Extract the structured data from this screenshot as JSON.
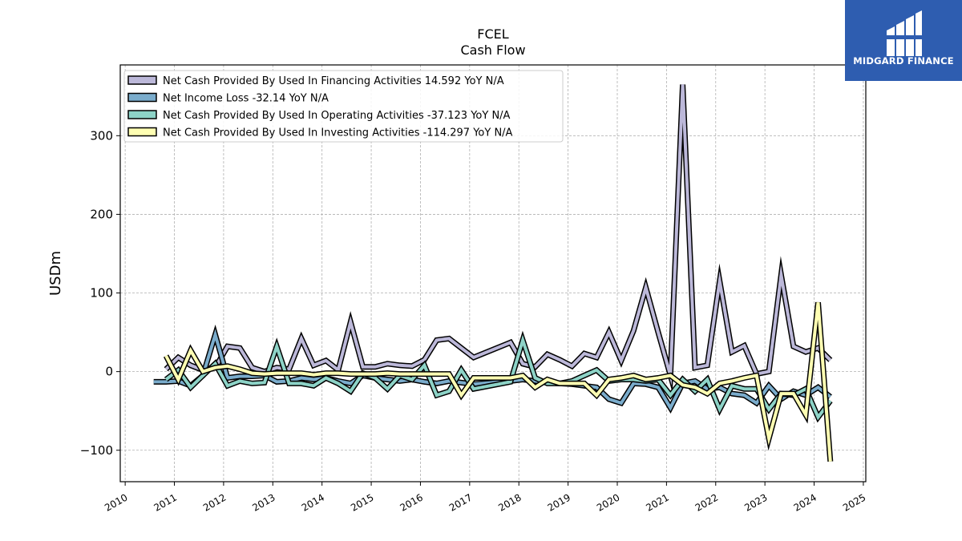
{
  "brand": {
    "name": "MIDGARD FINANCE",
    "bg_color": "#2e5db0"
  },
  "chart_data": {
    "type": "line",
    "title": "FCEL",
    "subtitle": "Cash Flow",
    "ylabel": "USDm",
    "xlabel": "",
    "ylim": [
      -140,
      390
    ],
    "xlim": [
      2009.9,
      2025.05
    ],
    "yticks": [
      -100,
      0,
      100,
      200,
      300
    ],
    "ytick_labels": [
      "−100",
      "0",
      "100",
      "200",
      "300"
    ],
    "xticks": [
      2010,
      2011,
      2012,
      2013,
      2014,
      2015,
      2016,
      2017,
      2018,
      2019,
      2020,
      2021,
      2022,
      2023,
      2024,
      2025
    ],
    "xtick_labels": [
      "2010",
      "2011",
      "2012",
      "2013",
      "2014",
      "2015",
      "2016",
      "2017",
      "2018",
      "2019",
      "2020",
      "2021",
      "2022",
      "2023",
      "2024",
      "2025"
    ],
    "grid": true,
    "legend_position": "top-left",
    "series": [
      {
        "name": "Net Cash Provided By Used In Financing Activities",
        "legend": "Net Cash Provided By Used In Financing Activities  14.592 YoY N/A",
        "color": "#bcb8d9",
        "x": [
          2010.83,
          2011.08,
          2011.33,
          2011.58,
          2011.83,
          2012.08,
          2012.33,
          2012.58,
          2012.83,
          2013.08,
          2013.33,
          2013.58,
          2013.83,
          2014.08,
          2014.33,
          2014.58,
          2014.83,
          2015.08,
          2015.33,
          2015.58,
          2015.83,
          2016.08,
          2016.33,
          2016.58,
          2016.83,
          2017.08,
          2017.83,
          2018.08,
          2018.33,
          2018.58,
          2018.83,
          2019.08,
          2019.33,
          2019.58,
          2019.83,
          2020.08,
          2020.33,
          2020.58,
          2020.83,
          2021.08,
          2021.33,
          2021.58,
          2021.83,
          2022.08,
          2022.33,
          2022.58,
          2022.83,
          2023.08,
          2023.33,
          2023.58,
          2023.83,
          2024.08,
          2024.33
        ],
        "y": [
          3,
          18,
          8,
          2,
          5,
          32,
          30,
          5,
          0,
          5,
          3,
          42,
          8,
          14,
          2,
          63,
          6,
          6,
          10,
          8,
          7,
          15,
          40,
          42,
          30,
          18,
          37,
          10,
          6,
          22,
          15,
          7,
          23,
          18,
          50,
          14,
          52,
          107,
          50,
          -5,
          365,
          5,
          8,
          115,
          25,
          33,
          -3,
          0,
          123,
          32,
          25,
          30,
          14.6
        ]
      },
      {
        "name": "Net Income Loss",
        "legend": "Net Income Loss  -32.14 YoY N/A",
        "color": "#7aaccc",
        "x": [
          2010.58,
          2010.83,
          2011.08,
          2011.33,
          2011.58,
          2011.83,
          2012.08,
          2012.33,
          2012.58,
          2012.83,
          2013.08,
          2013.33,
          2013.58,
          2013.83,
          2014.08,
          2014.33,
          2014.58,
          2014.83,
          2015.08,
          2015.33,
          2015.58,
          2015.83,
          2016.08,
          2016.33,
          2016.58,
          2016.83,
          2017.08,
          2017.83,
          2018.08,
          2018.33,
          2018.58,
          2018.83,
          2019.08,
          2019.33,
          2019.58,
          2019.83,
          2020.08,
          2020.33,
          2020.58,
          2020.83,
          2021.08,
          2021.33,
          2021.58,
          2021.83,
          2022.08,
          2022.33,
          2022.58,
          2022.83,
          2023.08,
          2023.33,
          2023.58,
          2023.83,
          2024.08,
          2024.33
        ],
        "y": [
          -13,
          -13,
          -12,
          -18,
          -5,
          47,
          -8,
          -6,
          -6,
          -5,
          -13,
          -12,
          -8,
          -10,
          -8,
          -12,
          -15,
          -5,
          -8,
          -10,
          -12,
          -10,
          -13,
          -15,
          -12,
          -14,
          -16,
          -12,
          -10,
          -12,
          -14,
          -15,
          -16,
          -18,
          -20,
          -35,
          -40,
          -15,
          -16,
          -20,
          -46,
          -15,
          -12,
          -22,
          -20,
          -28,
          -30,
          -40,
          -18,
          -35,
          -25,
          -30,
          -20,
          -32.1
        ]
      },
      {
        "name": "Net Cash Provided By Used In Operating Activities",
        "legend": "Net Cash Provided By Used In Operating Activities  -37.123 YoY N/A",
        "color": "#8dd3c7",
        "x": [
          2010.83,
          2011.08,
          2011.33,
          2011.58,
          2011.83,
          2012.08,
          2012.33,
          2012.58,
          2012.83,
          2013.08,
          2013.33,
          2013.58,
          2013.83,
          2014.08,
          2014.33,
          2014.58,
          2014.83,
          2015.08,
          2015.33,
          2015.58,
          2015.83,
          2016.08,
          2016.33,
          2016.58,
          2016.83,
          2017.08,
          2017.83,
          2018.08,
          2018.33,
          2018.58,
          2018.83,
          2019.08,
          2019.33,
          2019.58,
          2019.83,
          2020.08,
          2020.33,
          2020.58,
          2020.83,
          2021.08,
          2021.33,
          2021.58,
          2021.83,
          2022.08,
          2022.33,
          2022.58,
          2022.83,
          2023.08,
          2023.33,
          2023.58,
          2023.83,
          2024.08,
          2024.33
        ],
        "y": [
          -10,
          2,
          -20,
          -5,
          10,
          -18,
          -12,
          -15,
          -14,
          32,
          -15,
          -15,
          -18,
          -8,
          -15,
          -25,
          -2,
          -8,
          -22,
          -5,
          -10,
          8,
          -30,
          -25,
          2,
          -22,
          -13,
          40,
          -8,
          -15,
          -15,
          -12,
          -5,
          2,
          -12,
          -10,
          -10,
          -12,
          -10,
          -30,
          -10,
          -25,
          -10,
          -48,
          -18,
          -22,
          -22,
          -48,
          -28,
          -30,
          -22,
          -58,
          -37.1
        ]
      },
      {
        "name": "Net Cash Provided By Used In Investing Activities",
        "legend": "Net Cash Provided By Used In Investing Activities  -114.297 YoY N/A",
        "color": "#ffffb3",
        "x": [
          2010.83,
          2011.08,
          2011.33,
          2011.58,
          2011.83,
          2012.08,
          2012.33,
          2012.58,
          2012.83,
          2013.08,
          2013.33,
          2013.58,
          2013.83,
          2014.08,
          2014.33,
          2014.58,
          2014.83,
          2015.08,
          2015.33,
          2015.58,
          2015.83,
          2016.08,
          2016.33,
          2016.58,
          2016.83,
          2017.08,
          2017.83,
          2018.08,
          2018.33,
          2018.58,
          2018.83,
          2019.08,
          2019.33,
          2019.58,
          2019.83,
          2020.08,
          2020.33,
          2020.58,
          2020.83,
          2021.08,
          2021.33,
          2021.58,
          2021.83,
          2022.08,
          2022.33,
          2022.58,
          2022.83,
          2023.08,
          2023.33,
          2023.58,
          2023.83,
          2024.08,
          2024.33
        ],
        "y": [
          20,
          -10,
          27,
          0,
          5,
          7,
          3,
          -2,
          -3,
          -2,
          -2,
          -2,
          -4,
          -2,
          -2,
          -3,
          -3,
          -3,
          -2,
          -3,
          -3,
          -3,
          -3,
          -3,
          -30,
          -8,
          -8,
          -5,
          -20,
          -10,
          -15,
          -15,
          -15,
          -30,
          -10,
          -8,
          -5,
          -10,
          -8,
          -5,
          -17,
          -20,
          -28,
          -15,
          -12,
          -8,
          -5,
          -85,
          -28,
          -28,
          -55,
          88,
          -114.3
        ]
      }
    ]
  }
}
